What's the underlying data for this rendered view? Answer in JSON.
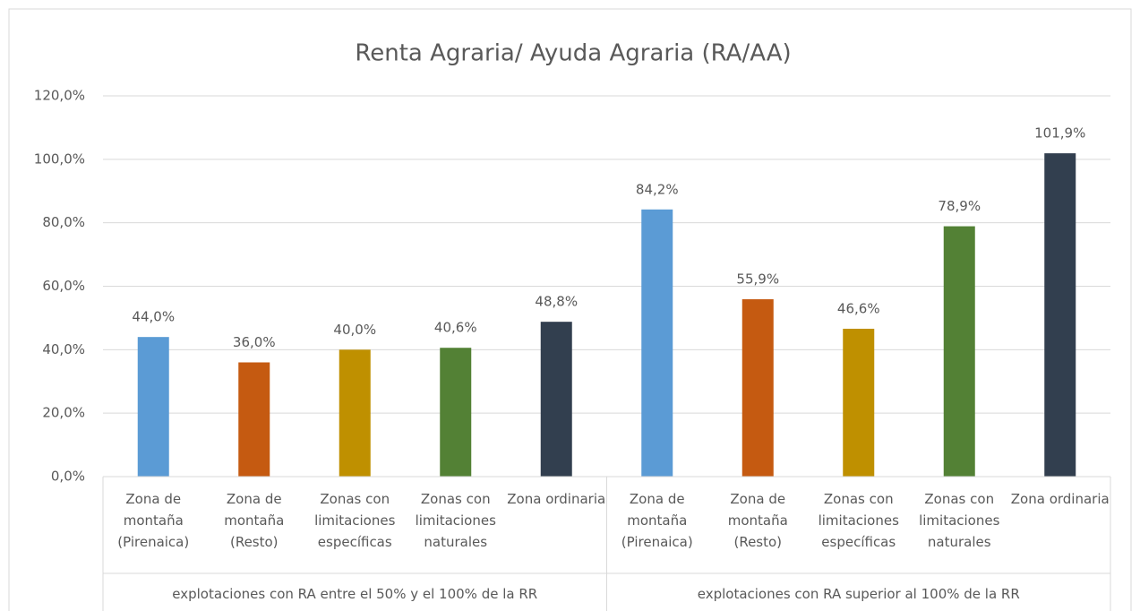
{
  "chart_data": {
    "type": "bar",
    "title": "Renta Agraria/ Ayuda Agraria (RA/AA)",
    "colors": [
      "#5b9bd5",
      "#c55a11",
      "#bf9000",
      "#538135",
      "#323f4f"
    ],
    "groups": [
      {
        "name": "explotaciones con RA entre el 50% y el 100% de la RR",
        "categories": [
          "Zona de montaña (Pirenaica)",
          "Zona de montaña (Resto)",
          "Zonas con limitaciones específicas",
          "Zonas con limitaciones naturales",
          "Zona ordinaria"
        ],
        "values": [
          44.0,
          36.0,
          40.0,
          40.6,
          48.8
        ],
        "value_labels": [
          "44,0%",
          "36,0%",
          "40,0%",
          "40,6%",
          "48,8%"
        ]
      },
      {
        "name": "explotaciones con RA superior al 100% de la RR",
        "categories": [
          "Zona de montaña (Pirenaica)",
          "Zona de montaña (Resto)",
          "Zonas con limitaciones específicas",
          "Zonas con limitaciones naturales",
          "Zona ordinaria"
        ],
        "values": [
          84.2,
          55.9,
          46.6,
          78.9,
          101.9
        ],
        "value_labels": [
          "84,2%",
          "55,9%",
          "46,6%",
          "78,9%",
          "101,9%"
        ]
      }
    ],
    "ylim": [
      0,
      120
    ],
    "yticks": [
      {
        "value": 0,
        "label": "0,0%"
      },
      {
        "value": 20,
        "label": "20,0%"
      },
      {
        "value": 40,
        "label": "40,0%"
      },
      {
        "value": 60,
        "label": "60,0%"
      },
      {
        "value": 80,
        "label": "80,0%"
      },
      {
        "value": 100,
        "label": "100,0%"
      },
      {
        "value": 120,
        "label": "120,0%"
      }
    ],
    "grid": true
  }
}
